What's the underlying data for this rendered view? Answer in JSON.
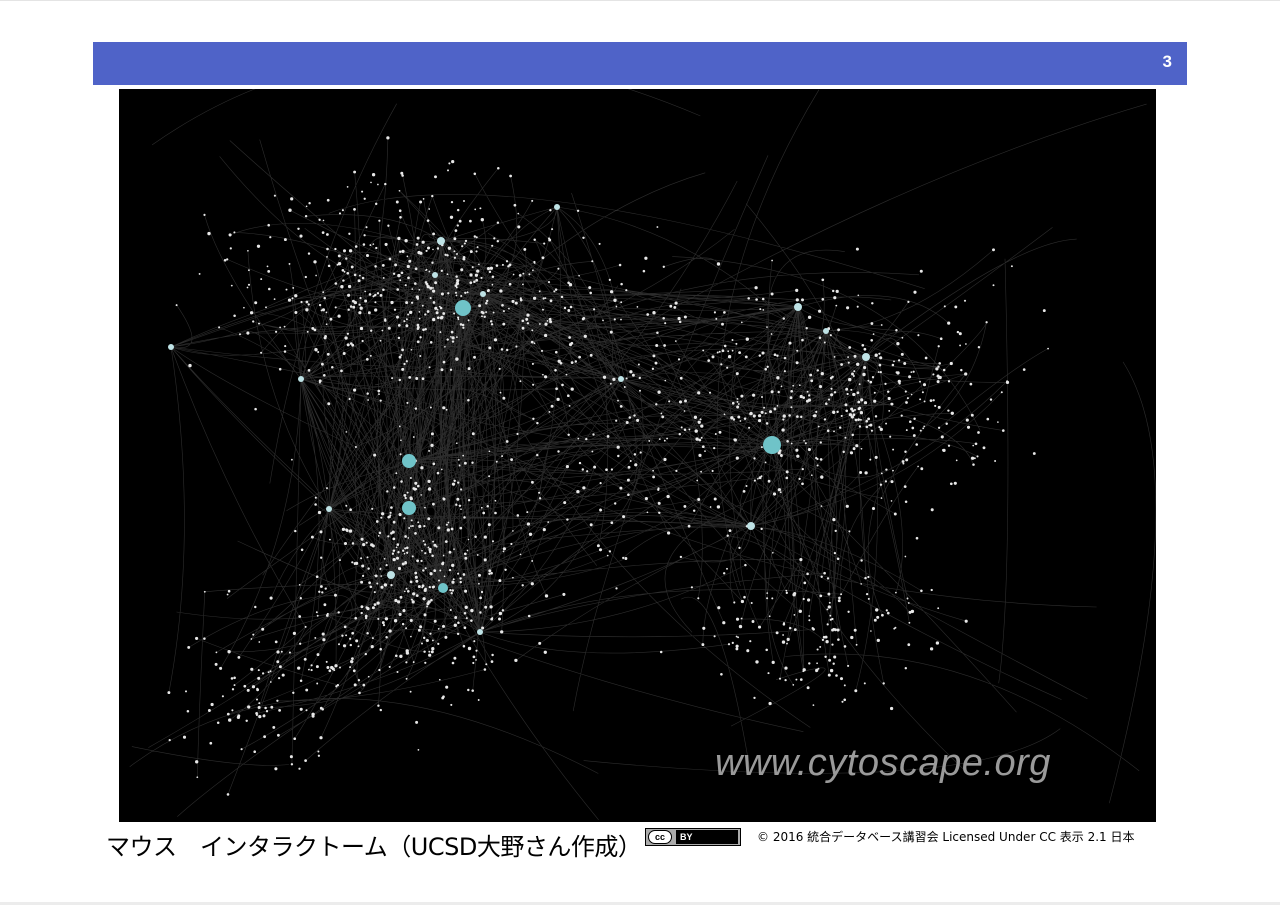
{
  "slide": {
    "page_number": "3",
    "header_color": "#4f63c8"
  },
  "figure": {
    "watermark": "www.cytoscape.org",
    "background_color": "#000000",
    "hub_color": "#6fc3c8"
  },
  "caption": {
    "title": "マウス　インタラクトーム（UCSD大野さん作成）",
    "cc_left": "cc",
    "cc_right": "BY",
    "license": "© 2016  統合データベース講習会 Licensed Under CC 表示 2.1 日本"
  }
}
